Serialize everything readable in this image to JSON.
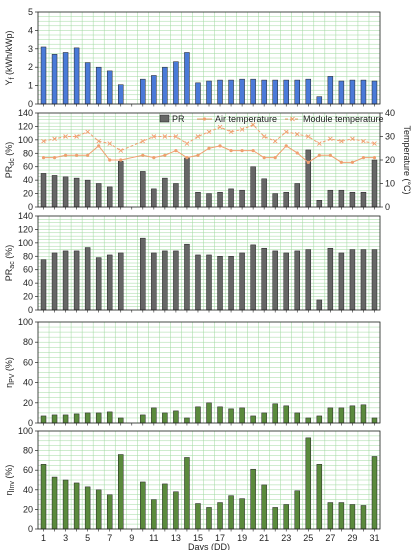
{
  "chart_data": [
    {
      "type": "bar",
      "ylabel": "Y_f (kWh/kWp)",
      "ylim": [
        0,
        5
      ],
      "yticks": [
        "0",
        "1",
        "2",
        "3",
        "4",
        "5"
      ],
      "bar_color": "#4a7ad8",
      "grid": true,
      "grid_color": "#7cc47c",
      "x": [
        1,
        2,
        3,
        4,
        5,
        6,
        7,
        8,
        9,
        10,
        11,
        12,
        13,
        14,
        15,
        16,
        17,
        18,
        19,
        20,
        21,
        22,
        23,
        24,
        25,
        26,
        27,
        28,
        29,
        30,
        31
      ],
      "values": [
        3.1,
        2.7,
        2.8,
        3.05,
        2.25,
        2.0,
        1.8,
        1.05,
        null,
        1.35,
        1.55,
        2.0,
        2.3,
        2.8,
        1.15,
        1.25,
        1.3,
        1.3,
        1.35,
        1.35,
        1.3,
        1.3,
        1.3,
        1.3,
        1.35,
        0.4,
        1.5,
        1.25,
        1.3,
        1.3,
        1.25
      ]
    },
    {
      "type": "bar+line",
      "ylabel": "PR_dc (%)",
      "y2label": "Temperature (°C)",
      "ylim": [
        0,
        140
      ],
      "yticks": [
        "0",
        "20",
        "40",
        "60",
        "80",
        "100",
        "120",
        "140"
      ],
      "y2lim": [
        0,
        40
      ],
      "y2ticks": [
        "0",
        "10",
        "20",
        "30",
        "40"
      ],
      "bar_color": "#666666",
      "line_color": "#f0a070",
      "legend": [
        "PR",
        "Air temperature",
        "Module temperature"
      ],
      "legend_position": "top",
      "x": [
        1,
        2,
        3,
        4,
        5,
        6,
        7,
        8,
        9,
        10,
        11,
        12,
        13,
        14,
        15,
        16,
        17,
        18,
        19,
        20,
        21,
        22,
        23,
        24,
        25,
        26,
        27,
        28,
        29,
        30,
        31
      ],
      "series": [
        {
          "name": "PR",
          "axis": "left",
          "values": [
            50,
            47,
            45,
            43,
            40,
            35,
            30,
            68,
            null,
            53,
            27,
            43,
            35,
            73,
            22,
            20,
            22,
            27,
            25,
            60,
            42,
            20,
            22,
            35,
            85,
            10,
            25,
            25,
            22,
            22,
            70
          ]
        },
        {
          "name": "Air temperature",
          "axis": "right",
          "values": [
            21,
            21,
            22,
            22,
            22,
            26,
            20,
            20,
            null,
            22,
            21,
            22,
            24,
            21,
            22,
            25,
            26,
            24,
            24,
            24,
            21,
            21,
            26,
            23,
            19,
            22,
            22,
            19,
            19,
            21,
            21
          ]
        },
        {
          "name": "Module temperature",
          "axis": "right",
          "values": [
            28,
            29,
            30,
            30,
            32,
            28,
            27,
            24,
            null,
            28,
            30,
            30,
            30,
            27,
            30,
            32,
            34,
            32,
            33,
            35,
            30,
            28,
            32,
            31,
            30,
            27,
            29,
            28,
            29,
            28,
            27
          ]
        }
      ]
    },
    {
      "type": "bar",
      "ylabel": "PR_ac (%)",
      "ylim": [
        0,
        140
      ],
      "yticks": [
        "0",
        "20",
        "40",
        "60",
        "80",
        "100",
        "120",
        "140"
      ],
      "bar_color": "#666666",
      "x": [
        1,
        2,
        3,
        4,
        5,
        6,
        7,
        8,
        9,
        10,
        11,
        12,
        13,
        14,
        15,
        16,
        17,
        18,
        19,
        20,
        21,
        22,
        23,
        24,
        25,
        26,
        27,
        28,
        29,
        30,
        31
      ],
      "values": [
        75,
        85,
        88,
        88,
        93,
        78,
        82,
        85,
        null,
        107,
        85,
        88,
        88,
        98,
        82,
        82,
        80,
        80,
        85,
        97,
        92,
        88,
        85,
        88,
        90,
        15,
        92,
        85,
        90,
        90,
        90
      ]
    },
    {
      "type": "bar",
      "ylabel": "η_PV (%)",
      "ylim": [
        0,
        100
      ],
      "yticks": [
        "0",
        "20",
        "40",
        "60",
        "80",
        "100"
      ],
      "bar_color": "#5a8a3c",
      "x": [
        1,
        2,
        3,
        4,
        5,
        6,
        7,
        8,
        9,
        10,
        11,
        12,
        13,
        14,
        15,
        16,
        17,
        18,
        19,
        20,
        21,
        22,
        23,
        24,
        25,
        26,
        27,
        28,
        29,
        30,
        31
      ],
      "values": [
        7,
        8,
        8,
        9,
        10,
        10,
        11,
        5,
        null,
        8,
        15,
        10,
        12,
        5,
        16,
        20,
        16,
        14,
        15,
        7,
        10,
        19,
        17,
        10,
        5,
        7,
        15,
        15,
        17,
        18,
        5
      ]
    },
    {
      "type": "bar",
      "ylabel": "η_Inv (%)",
      "xlabel": "Days (DD)",
      "ylim": [
        0,
        100
      ],
      "yticks": [
        "0",
        "20",
        "40",
        "60",
        "80",
        "100"
      ],
      "bar_color": "#5a8a3c",
      "x": [
        1,
        2,
        3,
        4,
        5,
        6,
        7,
        8,
        9,
        10,
        11,
        12,
        13,
        14,
        15,
        16,
        17,
        18,
        19,
        20,
        21,
        22,
        23,
        24,
        25,
        26,
        27,
        28,
        29,
        30,
        31
      ],
      "xticks": [
        "1",
        "3",
        "5",
        "7",
        "9",
        "11",
        "13",
        "15",
        "17",
        "19",
        "21",
        "23",
        "25",
        "27",
        "29",
        "31"
      ],
      "values": [
        66,
        53,
        50,
        47,
        43,
        40,
        35,
        76,
        null,
        48,
        30,
        46,
        38,
        73,
        26,
        22,
        27,
        34,
        31,
        61,
        45,
        22,
        25,
        39,
        93,
        66,
        27,
        27,
        25,
        24,
        74
      ]
    }
  ]
}
